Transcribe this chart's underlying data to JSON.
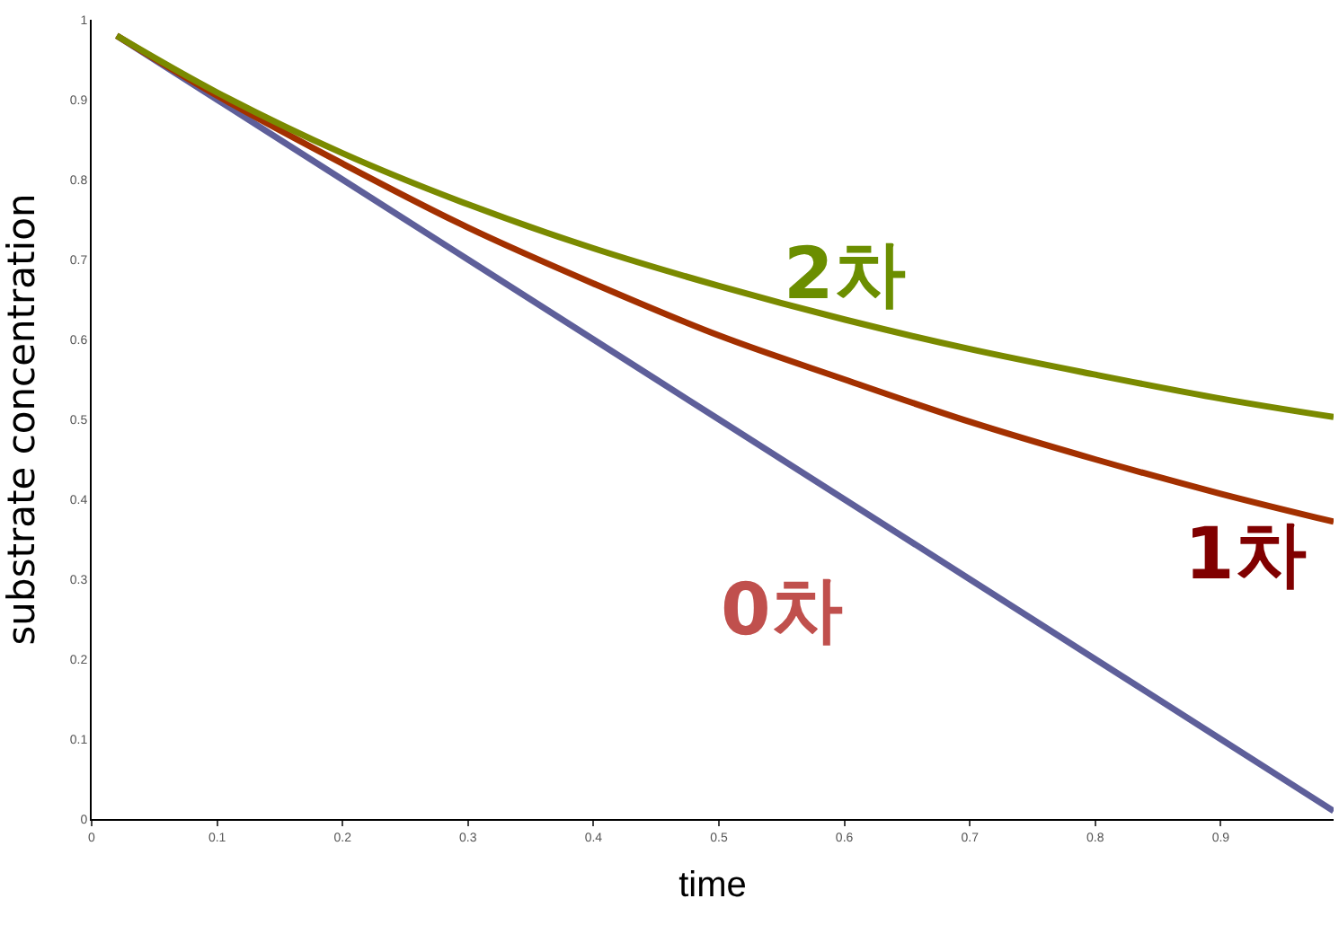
{
  "chart_data": {
    "type": "line",
    "xlabel": "time",
    "ylabel": "substrate concentration",
    "xlim": [
      0,
      0.99
    ],
    "ylim": [
      0,
      1
    ],
    "xticks": [
      0,
      0.1,
      0.2,
      0.3,
      0.4,
      0.5,
      0.6,
      0.7,
      0.8,
      0.9
    ],
    "yticks": [
      0,
      0.1,
      0.2,
      0.3,
      0.4,
      0.5,
      0.6,
      0.7,
      0.8,
      0.9,
      1
    ],
    "legend": false,
    "marker": "none",
    "line_style": "solid",
    "series": [
      {
        "name": "0차",
        "color": "#5e5f9a",
        "x": [
          0.02,
          0.1,
          0.2,
          0.3,
          0.4,
          0.5,
          0.6,
          0.7,
          0.8,
          0.9,
          0.99
        ],
        "values": [
          0.98,
          0.9,
          0.8,
          0.7,
          0.6,
          0.5,
          0.4,
          0.3,
          0.2,
          0.1,
          0.01
        ]
      },
      {
        "name": "1차",
        "color": "#a33000",
        "x": [
          0.02,
          0.1,
          0.2,
          0.3,
          0.4,
          0.5,
          0.6,
          0.7,
          0.8,
          0.9,
          0.99
        ],
        "values": [
          0.98,
          0.905,
          0.82,
          0.74,
          0.67,
          0.605,
          0.55,
          0.497,
          0.45,
          0.407,
          0.372
        ]
      },
      {
        "name": "2차",
        "color": "#7a8a00",
        "x": [
          0.02,
          0.1,
          0.2,
          0.3,
          0.4,
          0.5,
          0.6,
          0.7,
          0.8,
          0.9,
          0.99
        ],
        "values": [
          0.98,
          0.909,
          0.833,
          0.769,
          0.714,
          0.667,
          0.625,
          0.588,
          0.556,
          0.526,
          0.503
        ]
      }
    ]
  }
}
